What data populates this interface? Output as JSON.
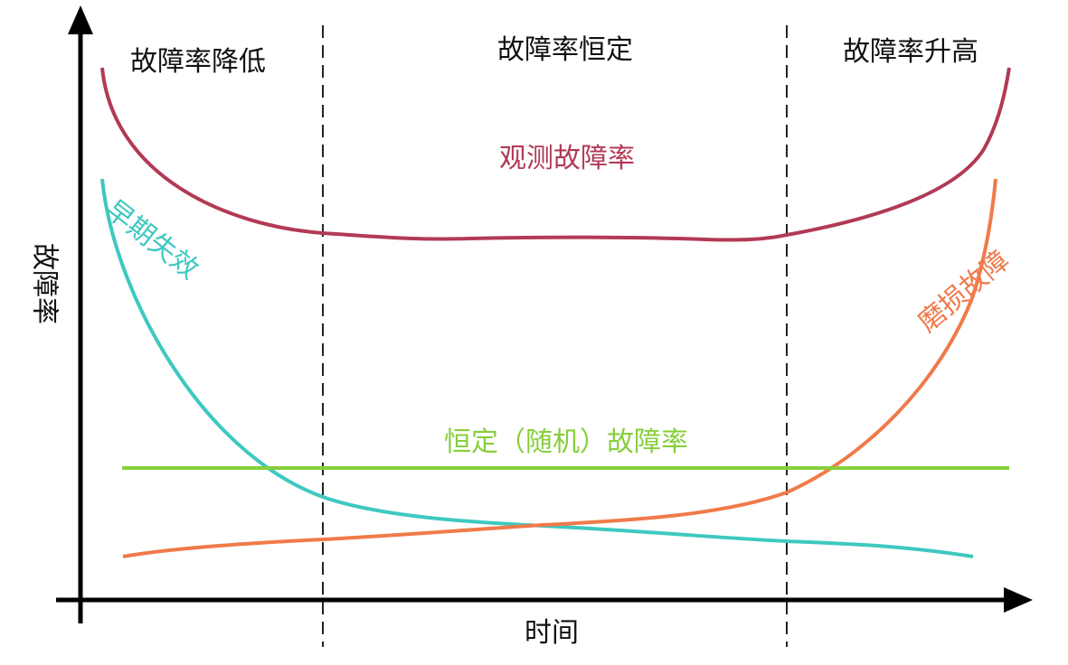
{
  "regions": {
    "left": "故障率降低",
    "middle": "故障率恒定",
    "right": "故障率升高"
  },
  "axes": {
    "y_label": "故障率",
    "x_label": "时间"
  },
  "curves": {
    "observed": {
      "label": "观测故障率",
      "color": "#b23a55"
    },
    "early": {
      "label": "早期失效",
      "color": "#3ec8c0"
    },
    "wearout": {
      "label": "磨损故障",
      "color": "#f07a4a"
    },
    "constant": {
      "label": "恒定（随机）故障率",
      "color": "#86cf3c"
    }
  }
}
